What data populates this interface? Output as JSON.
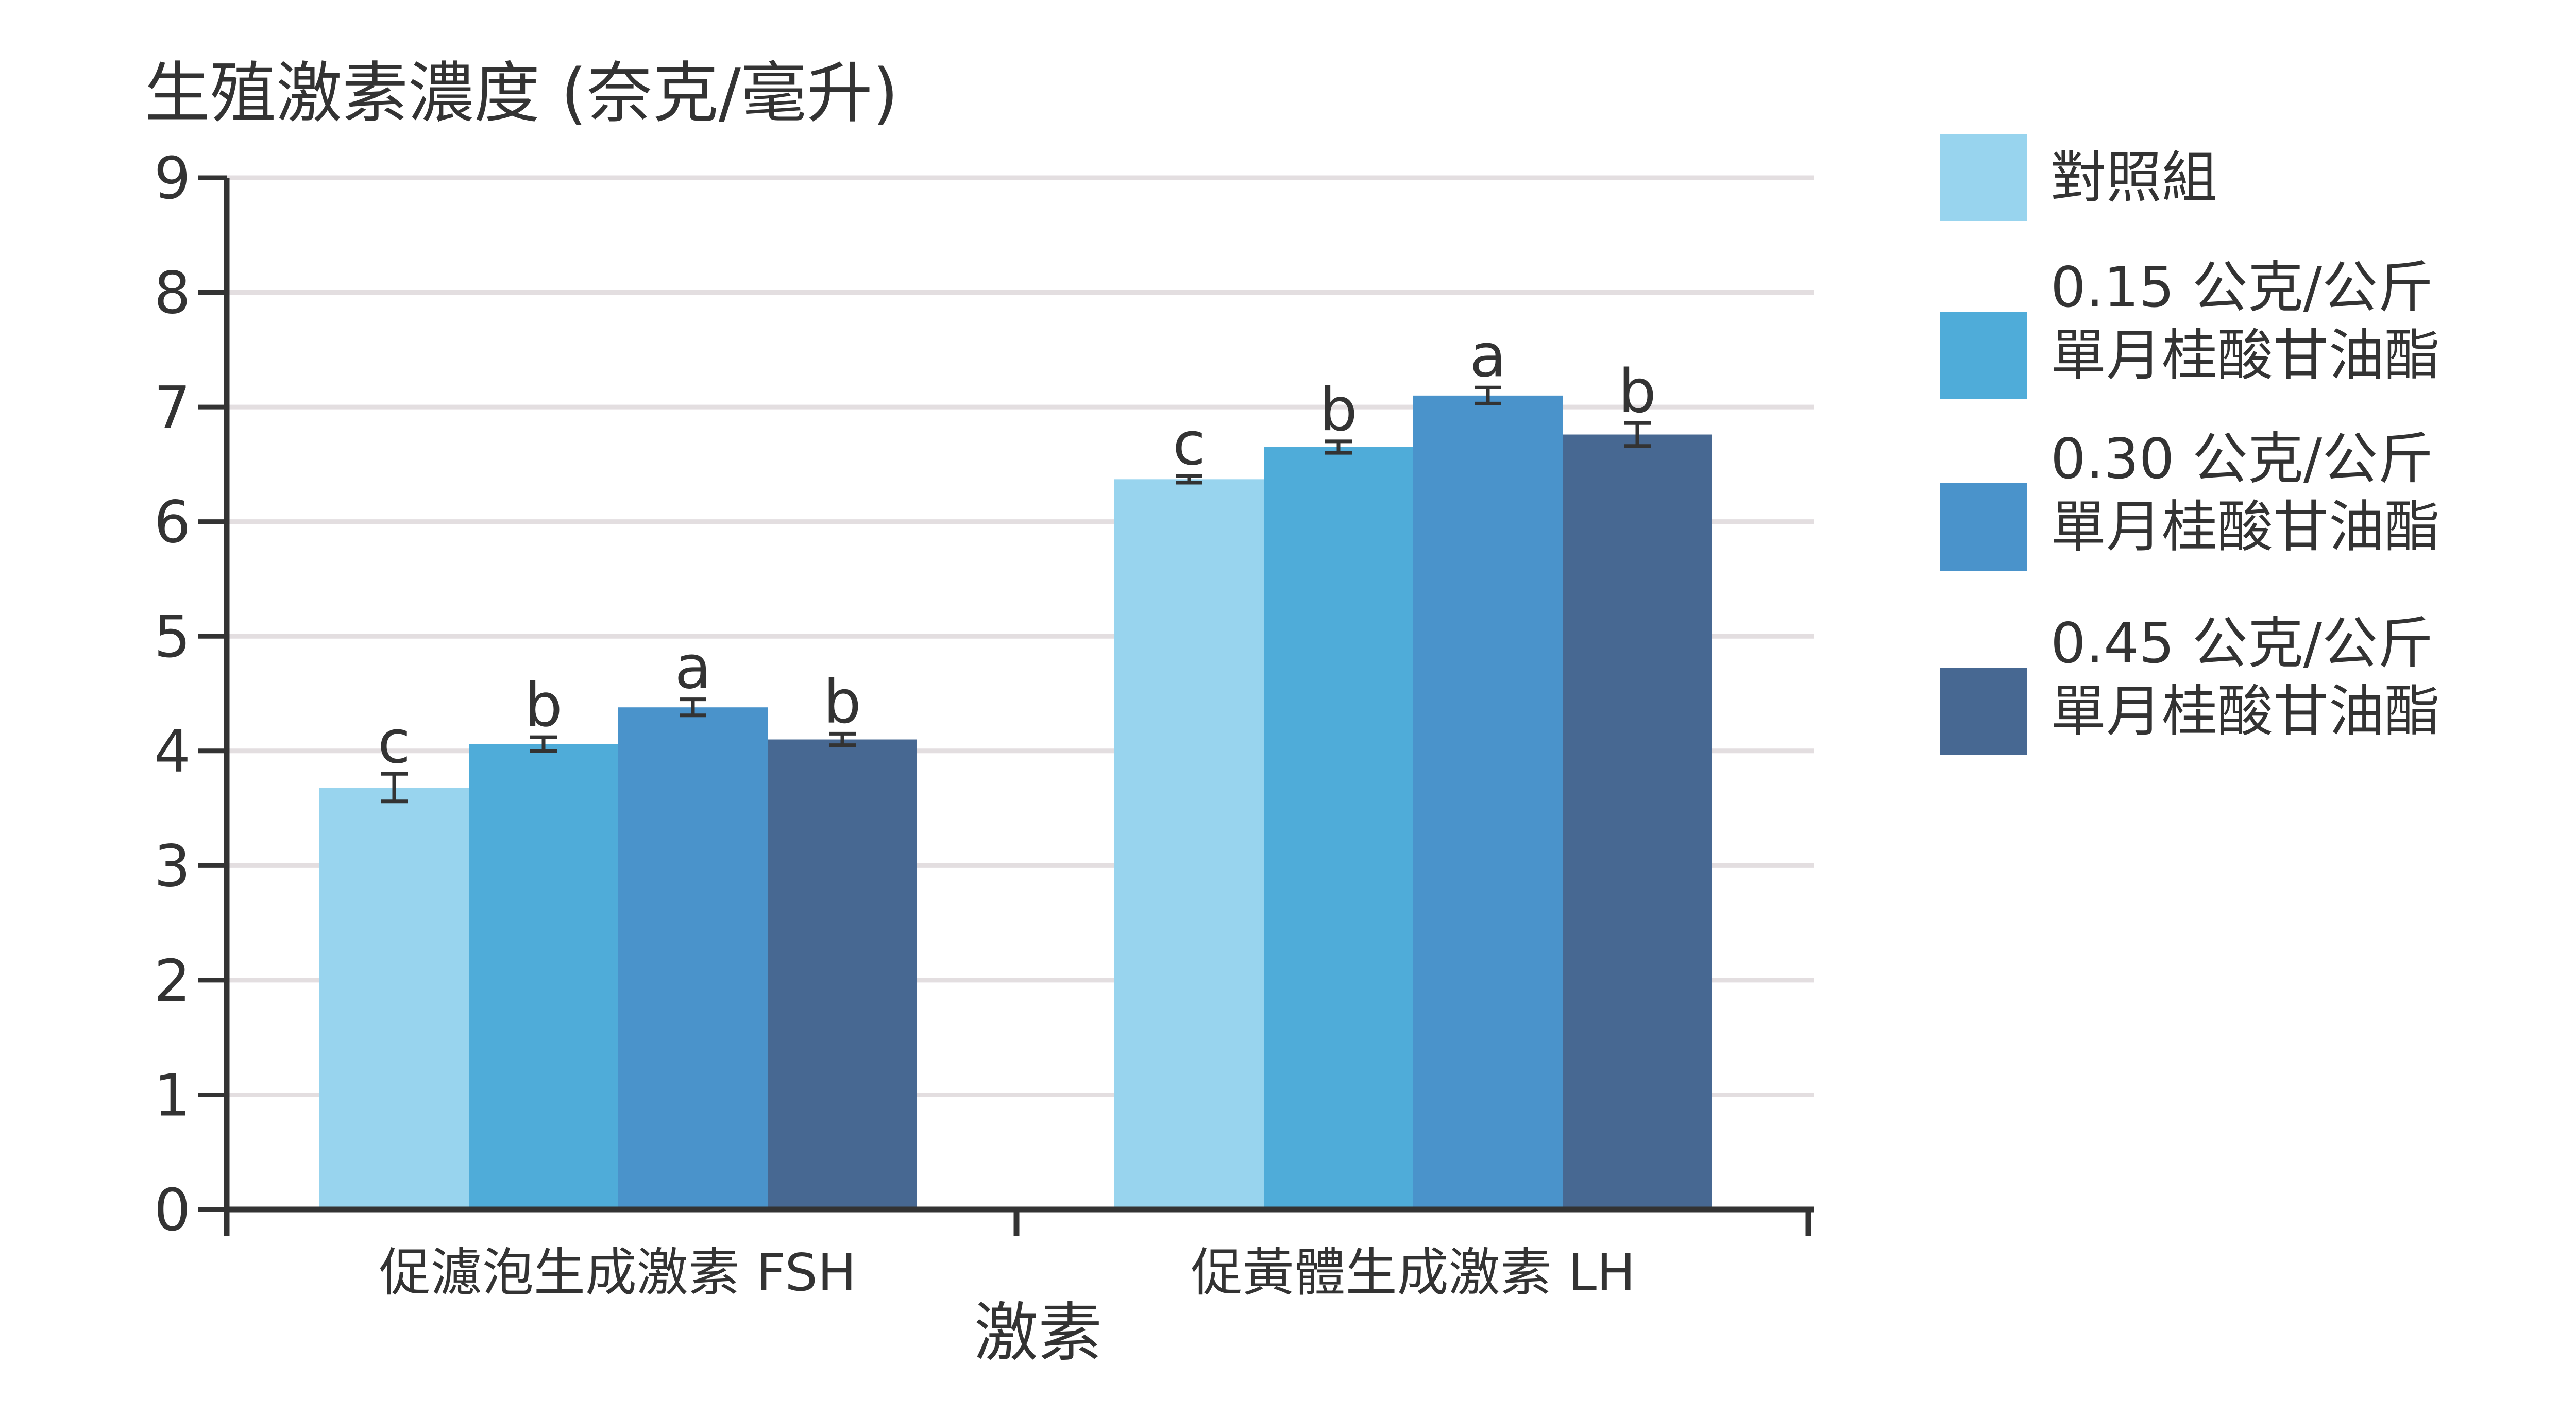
{
  "chart_data": {
    "type": "bar",
    "title": "",
    "ylabel": "生殖激素濃度 (奈克/毫升)",
    "xlabel": "激素",
    "ylim": [
      0,
      9
    ],
    "yticks": [
      "0",
      "1",
      "2",
      "3",
      "4",
      "5",
      "6",
      "7",
      "8",
      "9"
    ],
    "categories": [
      "促濾泡生成激素 FSH",
      "促黃體生成激素 LH"
    ],
    "grid": true,
    "legend_position": "right",
    "series": [
      {
        "name": "對照組",
        "color": "#98D4EE",
        "values": [
          3.68,
          6.37
        ],
        "errors": [
          0.12,
          0.03
        ],
        "labels": [
          "c",
          "c"
        ]
      },
      {
        "name": "0.15 公克/公斤\n單月桂酸甘油酯",
        "color": "#4FACD9",
        "values": [
          4.06,
          6.65
        ],
        "errors": [
          0.06,
          0.05
        ],
        "labels": [
          "b",
          "b"
        ]
      },
      {
        "name": "0.30 公克/公斤\n單月桂酸甘油酯",
        "color": "#4A93CB",
        "values": [
          4.38,
          7.1
        ],
        "errors": [
          0.07,
          0.07
        ],
        "labels": [
          "a",
          "a"
        ]
      },
      {
        "name": "0.45 公克/公斤\n單月桂酸甘油酯",
        "color": "#476892",
        "values": [
          4.1,
          6.76
        ],
        "errors": [
          0.05,
          0.1
        ],
        "labels": [
          "b",
          "b"
        ]
      }
    ]
  }
}
